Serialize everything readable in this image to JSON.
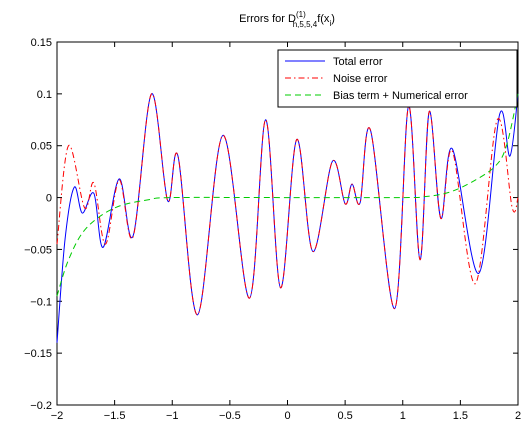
{
  "chart_data": {
    "type": "line",
    "title": {
      "text": "Errors for D",
      "sup": "(1)",
      "sub": "h,5,5,4",
      "rest": "f(x",
      "rest_sub": "i",
      "end": ")"
    },
    "xlim": [
      -2,
      2
    ],
    "xticks": [
      {
        "value": -2,
        "label": "−2"
      },
      {
        "value": -1.5,
        "label": "−1.5"
      },
      {
        "value": -1,
        "label": "−1"
      },
      {
        "value": -0.5,
        "label": "−0.5"
      },
      0,
      0.5,
      1,
      1.5,
      2
    ],
    "ylim": [
      -0.2,
      0.15
    ],
    "yticks": [
      {
        "value": -0.2,
        "label": "−0.2"
      },
      {
        "value": -0.15,
        "label": "−0.15"
      },
      {
        "value": -0.1,
        "label": "−0.1"
      },
      {
        "value": -0.05,
        "label": "−0.05"
      },
      0,
      0.05,
      0.1,
      0.15
    ],
    "grid": false,
    "legend": "top-right",
    "series": [
      {
        "name": "Total error",
        "color": "#0000ff",
        "style": "solid",
        "x": [
          -2,
          -1.93,
          -1.85,
          -1.78,
          -1.68,
          -1.6,
          -1.46,
          -1.34,
          -1.18,
          -1.04,
          -0.95,
          -0.78,
          -0.56,
          -0.33,
          -0.19,
          -0.06,
          0.08,
          0.22,
          0.39,
          0.5,
          0.56,
          0.63,
          0.72,
          0.93,
          1.05,
          1.15,
          1.23,
          1.33,
          1.43,
          1.66,
          1.84,
          1.93,
          2
        ],
        "values": [
          -0.14,
          -0.04,
          0.01,
          -0.015,
          0.004,
          -0.048,
          0.018,
          -0.037,
          0.1,
          -0.003,
          0.04,
          -0.113,
          0.06,
          -0.097,
          0.075,
          -0.087,
          0.056,
          -0.052,
          0.035,
          -0.006,
          0.013,
          -0.005,
          0.065,
          -0.107,
          0.088,
          -0.06,
          0.083,
          -0.02,
          0.047,
          -0.073,
          0.08,
          0.04,
          0.1
        ]
      },
      {
        "name": "Noise error",
        "color": "#ff0000",
        "style": "dashdot",
        "x": [
          -2,
          -1.9,
          -1.76,
          -1.68,
          -1.58,
          -1.46,
          -1.34,
          -1.18,
          -1.04,
          -0.95,
          -0.78,
          -0.56,
          -0.33,
          -0.19,
          -0.06,
          0.08,
          0.22,
          0.39,
          0.5,
          0.56,
          0.63,
          0.72,
          0.93,
          1.05,
          1.15,
          1.23,
          1.33,
          1.43,
          1.63,
          1.82,
          1.95,
          2
        ],
        "values": [
          -0.045,
          0.05,
          -0.01,
          0.014,
          -0.045,
          0.017,
          -0.038,
          0.1,
          -0.003,
          0.04,
          -0.113,
          0.06,
          -0.097,
          0.075,
          -0.087,
          0.056,
          -0.052,
          0.035,
          -0.006,
          0.013,
          -0.005,
          0.065,
          -0.107,
          0.088,
          -0.06,
          0.083,
          -0.02,
          0.045,
          -0.083,
          0.075,
          -0.01,
          0.0
        ]
      },
      {
        "name": "Bias term + Numerical error",
        "color": "#00cc00",
        "style": "dashed",
        "x": [
          -2,
          -1.9,
          -1.75,
          -1.5,
          -1.2,
          -1,
          0,
          1,
          1.2,
          1.4,
          1.6,
          1.8,
          1.9,
          2
        ],
        "values": [
          -0.095,
          -0.06,
          -0.03,
          -0.01,
          -0.002,
          0,
          0,
          0,
          0.001,
          0.005,
          0.015,
          0.03,
          0.05,
          0.1
        ]
      }
    ]
  }
}
